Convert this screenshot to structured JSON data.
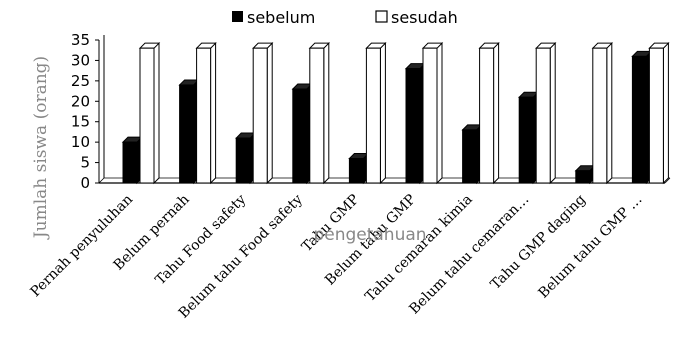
{
  "chart_data": {
    "type": "bar",
    "style": "3d-clustered-column",
    "categories": [
      "Pernah penyuluhan",
      "Belum pernah",
      "Tahu Food safety",
      "Belum tahu Food safety",
      "Tahu GMP",
      "Belum tahu GMP",
      "Tahu cemaran kimia",
      "Belum tahu cemaran…",
      "Tahu GMP daging",
      "Belum tahu GMP …"
    ],
    "series": [
      {
        "name": "sebelum",
        "color": "#000000",
        "values": [
          10,
          24,
          11,
          23,
          6,
          28,
          13,
          21,
          3,
          31
        ]
      },
      {
        "name": "sesudah",
        "color": "#ffffff",
        "values": [
          33,
          33,
          33,
          33,
          33,
          33,
          33,
          33,
          33,
          33
        ]
      }
    ],
    "ylabel": "Jumlah siswa (orang)",
    "xlabel": "pengetahuan",
    "ylim": [
      0,
      35
    ],
    "yticks": [
      0,
      5,
      10,
      15,
      20,
      25,
      30,
      35
    ],
    "grid": false,
    "legend_position": "top"
  }
}
